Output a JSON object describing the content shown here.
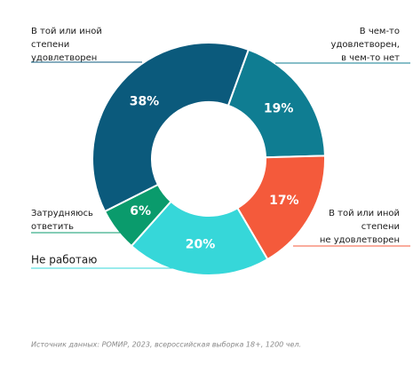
{
  "chart_data": {
    "type": "donut",
    "categories": [
      [
        "В чем-то",
        "удовлетворен,",
        "в чем-то нет"
      ],
      [
        "В той или иной",
        "степени",
        "не удовлетворен"
      ],
      [
        "Не работаю"
      ],
      [
        "Затрудняюсь",
        "ответить"
      ],
      [
        "В той или иной",
        "степени",
        "удовлетворен"
      ]
    ],
    "values": [
      19,
      17,
      20,
      6,
      38
    ],
    "value_labels": [
      "19%",
      "17%",
      "20%",
      "6%",
      "38%"
    ],
    "colors": [
      "#0f7d92",
      "#f45a3b",
      "#36d7d9",
      "#0a9b6c",
      "#0b5a7c"
    ],
    "source": "Источник данных: РОМИР, 2023, всероссийская выборка 18+, 1200 чел."
  }
}
